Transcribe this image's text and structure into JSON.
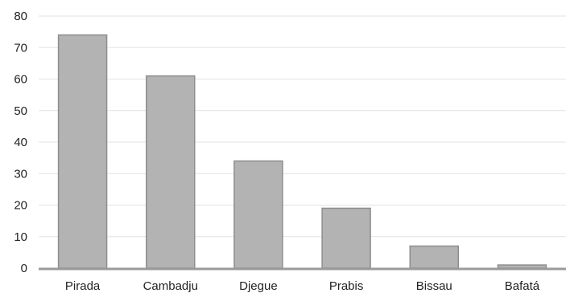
{
  "chart_data": {
    "type": "bar",
    "title": "",
    "xlabel": "",
    "ylabel": "",
    "categories": [
      "Pirada",
      "Cambadju",
      "Djegue",
      "Prabis",
      "Bissau",
      "Bafatá"
    ],
    "values": [
      74,
      61,
      34,
      19,
      7,
      1
    ],
    "ylim": [
      0,
      80
    ],
    "yticks": [
      "0",
      "10",
      "20",
      "30",
      "40",
      "50",
      "60",
      "70",
      "80"
    ],
    "grid": true,
    "legend": "none",
    "colors": {
      "bar_fill": "#b3b3b3",
      "bar_stroke": "#8e8e8e",
      "grid": "#e3e3e3"
    }
  }
}
